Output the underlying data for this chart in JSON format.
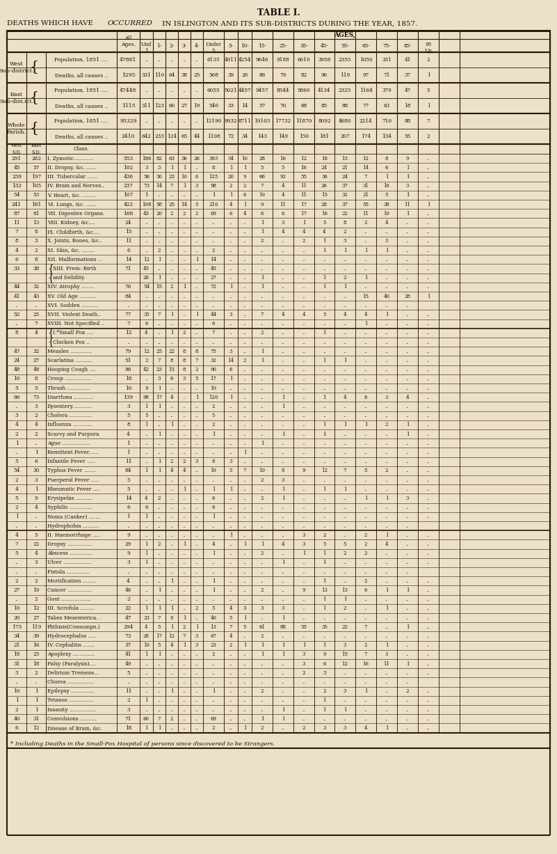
{
  "title1": "TABLE I.",
  "title2_normal": "DEATHS WHICH HAVE ",
  "title2_italic": "OCCURRED",
  "title2_rest": " IN ISLINGTON AND ITS SUB-DISTRICTS DURING THE YEAR, 1857.",
  "bg_color": "#ede0c8",
  "age_headers": [
    "All\nAges.",
    "Und\n1",
    "1-",
    "2-",
    "3-",
    "4-",
    "Under\n5",
    "5-",
    "10-",
    "15-",
    "25-",
    "35-",
    "45-",
    "55-",
    "65-",
    "75-",
    "85-",
    "95\nUp"
  ],
  "sect1": [
    [
      "West\nSub-district.",
      "Population, 1851 ....",
      "47881",
      "..",
      "..",
      "..",
      "..",
      "..",
      "6135",
      "4911",
      "4254",
      "9646",
      "9188",
      "6010",
      "3958",
      "2355",
      "1050",
      "331",
      "41",
      "2"
    ],
    [
      "",
      "Deaths, all causes ..",
      "1295",
      "331",
      "110",
      "64",
      "38",
      "25",
      "568",
      "39",
      "20",
      "86",
      "79",
      "82",
      "96",
      "119",
      "97",
      "71",
      "37",
      "1"
    ],
    [
      "East\nSub-dist.ict.",
      "Population, 1851 ....",
      "47448",
      "..",
      "..",
      "..",
      "..",
      "..",
      "6055",
      "5021",
      "4457",
      "9457",
      "8544",
      "5860",
      "4134",
      "2325",
      "1164",
      "379",
      "47",
      "5"
    ],
    [
      "",
      "Deaths, all causes ..",
      "1115",
      "311",
      "123",
      "60",
      "27",
      "19",
      "540",
      "33",
      "14",
      "57",
      "70",
      "68",
      "85",
      "88",
      "77",
      "63",
      "18",
      "1"
    ],
    [
      "Whole\nParish.",
      "Population, 1851 ....",
      "95329",
      "..",
      "..",
      "..",
      "..",
      "..",
      "12190",
      "9932",
      "8711",
      "19103",
      "17732",
      "11870",
      "8092",
      "4680",
      "2214",
      "710",
      "88",
      "7"
    ],
    [
      "",
      "Deaths, all causes ..",
      "2410",
      "642",
      "233",
      "124",
      "65",
      "44",
      "1108",
      "72",
      "34",
      "143",
      "149",
      "150",
      "181",
      "207",
      "174",
      "134",
      "55",
      "2"
    ]
  ],
  "data_rows": [
    [
      "291",
      "262",
      "I. Zymotic............",
      "553",
      "186",
      "82",
      "63",
      "36",
      "26",
      "393",
      "34",
      "10",
      "28",
      "16",
      "12",
      "18",
      "13",
      "12",
      "8",
      "9",
      ".."
    ],
    [
      "45",
      "57",
      "II. Dropsy, &c. ......",
      "102",
      "3",
      "3",
      "1",
      "1",
      "..",
      "8",
      "1",
      "1",
      "5",
      "5",
      "16",
      "24",
      "21",
      "14",
      "6",
      "1",
      ".."
    ],
    [
      "239",
      "197",
      "III. Tubercular ......",
      "436",
      "56",
      "30",
      "23",
      "10",
      "6",
      "125",
      "20",
      "9",
      "66",
      "92",
      "55",
      "36",
      "24",
      "7",
      "1",
      "1",
      ".."
    ],
    [
      "132",
      "105",
      "IV. Brain and Nerves..",
      "237",
      "73",
      "14",
      "7",
      "1",
      "3",
      "98",
      "2",
      "2",
      "7",
      "4",
      "11",
      "26",
      "37",
      "31",
      "16",
      "3",
      ".."
    ],
    [
      "54",
      "53",
      "V. Heart, &c. ........",
      "107",
      "1",
      "..",
      "..",
      "..",
      "..",
      "1",
      "1",
      "6",
      "10",
      "4",
      "11",
      "15",
      "32",
      "21",
      "5",
      "1",
      ".."
    ],
    [
      "241",
      "181",
      "VI. Lungs, &c. ......",
      "422",
      "108",
      "58",
      "25",
      "14",
      "5",
      "210",
      "4",
      "1",
      "9",
      "11",
      "17",
      "28",
      "37",
      "55",
      "38",
      "11",
      "1"
    ],
    [
      "87",
      "81",
      "VII. Digestive Organs.",
      "168",
      "43",
      "20",
      "2",
      "2",
      "2",
      "69",
      "6",
      "4",
      "6",
      "6",
      "17",
      "16",
      "22",
      "11",
      "10",
      "1",
      ".."
    ],
    [
      "11",
      "13",
      "VIII. Kidney, &c....",
      "24",
      "..",
      "..",
      "..",
      "..",
      "..",
      "..",
      "..",
      "..",
      "1",
      "3",
      "1",
      "5",
      "8",
      "2",
      "4",
      "..",
      ".."
    ],
    [
      "7",
      "8",
      "IX. Childbirth, &c....",
      "15",
      "..",
      "..",
      "..",
      "..",
      "..",
      "..",
      "..",
      "..",
      "1",
      "4",
      "4",
      "4",
      "2",
      "..",
      "..",
      "..",
      ".."
    ],
    [
      "8",
      "3",
      "X. Joints, Bones, &c..",
      "11",
      "..",
      "..",
      "..",
      "..",
      "..",
      "..",
      "..",
      "..",
      "2",
      "..",
      "2",
      "1",
      "3",
      "..",
      "3",
      "..",
      ".."
    ],
    [
      "4",
      "2",
      "XI. Skin, &c. ........",
      "6",
      "..",
      "2",
      "..",
      "..",
      "..",
      "2",
      "..",
      "..",
      "..",
      "..",
      "..",
      "1",
      "1",
      "1",
      "1",
      "..",
      ".."
    ],
    [
      "6",
      "8",
      "XII. Malformations ..",
      "14",
      "12",
      "1",
      "..",
      "..",
      "1",
      "14",
      "..",
      "..",
      "..",
      "..",
      "..",
      "..",
      "..",
      "..",
      "..",
      "..",
      ".."
    ],
    [
      "33",
      "38",
      "  XIII. Prem: Birth  ",
      "71",
      "45",
      "..",
      "..",
      "..",
      "..",
      "45",
      "..",
      "..",
      "..",
      "..",
      "..",
      "..",
      "..",
      "..",
      "..",
      "..",
      ".."
    ],
    [
      "",
      "",
      "      and Debility.  ",
      "",
      "26",
      "1",
      "..",
      "..",
      "..",
      "27",
      "..",
      "..",
      "1",
      "..",
      "..",
      "1",
      "2",
      "1",
      "..",
      "..",
      ".."
    ],
    [
      "44",
      "32",
      "XIV. Atrophy ........",
      "76",
      "54",
      "15",
      "2",
      "1",
      "..",
      "72",
      "1",
      "..",
      "1",
      "..",
      "..",
      "1",
      "1",
      "..",
      "..",
      "..",
      ".."
    ],
    [
      "41",
      "43",
      "XV. Old Age ..........",
      "84",
      "..",
      "..",
      "..",
      "..",
      "..",
      "..",
      "..",
      "..",
      "..",
      "..",
      "..",
      "..",
      "..",
      "15",
      "40",
      "28",
      "1"
    ],
    [
      "..",
      "..",
      "XVI. Sudden ..........",
      "..",
      "..",
      "..",
      "..",
      "..",
      "..",
      "..",
      "..",
      "..",
      "..",
      "..",
      "..",
      "..",
      "..",
      "..",
      "..",
      ".."
    ],
    [
      "52",
      "25",
      "XVII. Violent Death..",
      "77",
      "35",
      "7",
      "1",
      "..",
      "1",
      "44",
      "3",
      "..",
      "7",
      "4",
      "4",
      "5",
      "4",
      "4",
      "1",
      "..",
      ".."
    ],
    [
      "..",
      "7",
      "XVIII. Not Specified ..",
      "7",
      "6",
      "..",
      "..",
      "..",
      "..",
      "6",
      "..",
      "..",
      "..",
      "..",
      "..",
      "..",
      "..",
      "1",
      "..",
      "..",
      ".."
    ],
    [
      "8",
      "4",
      "  I.*Small Pox .... ",
      "12",
      "4",
      "..",
      "1",
      "2",
      "..",
      "7",
      "..",
      "..",
      "2",
      "..",
      "..",
      "1",
      "..",
      "..",
      "..",
      "..",
      ".."
    ],
    [
      "",
      "",
      "  Chicken Pox ..   ",
      "..",
      "..",
      "..",
      "..",
      "..",
      "..",
      "..",
      "..",
      "..",
      "..",
      "..",
      "..",
      "..",
      "..",
      "..",
      "..",
      "..",
      ".."
    ],
    [
      "47",
      "32",
      "Measles .............",
      "79",
      "12",
      "25",
      "22",
      "8",
      "8",
      "75",
      "3",
      "..",
      "1",
      "..",
      "..",
      "..",
      "..",
      "..",
      "..",
      "..",
      ".."
    ],
    [
      "24",
      "27",
      "Scarlatina ..........",
      "51",
      "2",
      "7",
      "8",
      "8",
      "7",
      "32",
      "14",
      "2",
      "1",
      "..",
      "..",
      "1",
      "1",
      "..",
      "..",
      "..",
      ".."
    ],
    [
      "48",
      "48",
      "Hooping Cough ....",
      "96",
      "42",
      "23",
      "15",
      "8",
      "2",
      "90",
      "6",
      "..",
      "..",
      "..",
      "..",
      "..",
      "..",
      "..",
      "..",
      "..",
      ".."
    ],
    [
      "10",
      "8",
      "Croup ................",
      "18",
      "..",
      "3",
      "6",
      "3",
      "5",
      "17",
      "1",
      "..",
      "..",
      "..",
      "..",
      "..",
      "..",
      "..",
      "..",
      "..",
      ".."
    ],
    [
      "5",
      "5",
      "Thrush ..............",
      "10",
      "9",
      "1",
      "..",
      "..",
      "..",
      "10",
      "..",
      "..",
      "..",
      "..",
      "..",
      "..",
      "..",
      "..",
      "..",
      "..",
      ".."
    ],
    [
      "66",
      "73",
      "Diarrhœa ............",
      "139",
      "98",
      "17",
      "4",
      "..",
      "1",
      "120",
      "1",
      "..",
      "..",
      "1",
      "..",
      "1",
      "4",
      "6",
      "3",
      "4",
      ".."
    ],
    [
      "..",
      "3",
      "Dysentery............",
      "3",
      "1",
      "1",
      "..",
      "..",
      "..",
      "2",
      "..",
      "..",
      "..",
      "1",
      "..",
      "..",
      "..",
      "..",
      "..",
      "..",
      ".."
    ],
    [
      "3",
      "2",
      "Cholera ..............",
      "5",
      "5",
      "..",
      "..",
      "..",
      "..",
      "5",
      "..",
      "..",
      "..",
      "..",
      "..",
      "..",
      "..",
      "..",
      "..",
      "..",
      ".."
    ],
    [
      "4",
      "4",
      "Influenza ............",
      "8",
      "1",
      "..",
      "1",
      "..",
      "..",
      "2",
      "..",
      "..",
      "..",
      "..",
      "..",
      "1",
      "1",
      "1",
      "2",
      "1",
      ".."
    ],
    [
      "2",
      "2",
      "Scurvy and Purpura",
      "4",
      "..",
      "1",
      "..",
      "..",
      "..",
      "1",
      "..",
      "..",
      "..",
      "1",
      "..",
      "1",
      "..",
      "..",
      "..",
      "1",
      ".."
    ],
    [
      "1",
      "..",
      "Ague .................",
      "1",
      "..",
      "..",
      "..",
      "..",
      "..",
      "..",
      "..",
      "..",
      "1",
      "..",
      "..",
      "..",
      "..",
      "..",
      "..",
      "..",
      ".."
    ],
    [
      "..",
      "1",
      "Remittent Fever......",
      "1",
      "..",
      "..",
      "..",
      "..",
      "..",
      "..",
      "..",
      "1",
      "..",
      "..",
      "..",
      "..",
      "..",
      "..",
      "..",
      "..",
      ".."
    ],
    [
      "5",
      "6",
      "Infantile Fever .....",
      "11",
      "..",
      "1",
      "2",
      "2",
      "3",
      "8",
      "3",
      "..",
      "..",
      "..",
      "..",
      "..",
      "..",
      "..",
      "..",
      "..",
      ".."
    ],
    [
      "54",
      "30",
      "Typhus Fever .......",
      "84",
      "1",
      "1",
      "4",
      "4",
      "..",
      "10",
      "5",
      "7",
      "10",
      "8",
      "9",
      "12",
      "7",
      "5",
      "2",
      "..",
      ".."
    ],
    [
      "2",
      "3",
      "Puerperal Fever .....",
      "5",
      "..",
      "..",
      "..",
      "..",
      "..",
      "..",
      "..",
      "..",
      "2",
      "3",
      "..",
      "..",
      "..",
      "..",
      "..",
      "..",
      ".."
    ],
    [
      "4",
      "1",
      "Rheumatic Fever ....",
      "5",
      "..",
      "..",
      "..",
      "1",
      "..",
      "1",
      "1",
      "..",
      "..",
      "1",
      "..",
      "1",
      "1",
      "..",
      "..",
      "..",
      ".."
    ],
    [
      "5",
      "9",
      "Erysipelas ..........",
      "14",
      "4",
      "2",
      "..",
      "..",
      "..",
      "6",
      "..",
      "..",
      "2",
      "1",
      "..",
      "..",
      "..",
      "1",
      "1",
      "3",
      ".."
    ],
    [
      "2",
      "4",
      "Syphilis ..............",
      "6",
      "6",
      "..",
      "..",
      "..",
      "..",
      "6",
      "..",
      "..",
      "..",
      "..",
      "..",
      "..",
      "..",
      "..",
      "..",
      "..",
      ".."
    ],
    [
      "1",
      "..",
      "Noma (Canker) .......",
      "1",
      "1",
      "..",
      "..",
      "..",
      "..",
      "1",
      "..",
      "..",
      "..",
      "..",
      "..",
      "..",
      "..",
      "..",
      "..",
      "..",
      ".."
    ],
    [
      "..",
      "..",
      "Hydrophobia ..........",
      "..",
      "..",
      "..",
      "..",
      "..",
      "..",
      "..",
      "..",
      "..",
      "..",
      "..",
      "..",
      "..",
      "..",
      "..",
      "..",
      ".."
    ],
    [
      "4",
      "5",
      "II. Haemorrhage .....",
      "9",
      "..",
      "..",
      "..",
      "..",
      "..",
      "..",
      "1",
      "..",
      "..",
      "..",
      "3",
      "2",
      "..",
      "2",
      "1",
      "..",
      ".."
    ],
    [
      "7",
      "22",
      "Dropsy ...............",
      "29",
      "1",
      "2",
      "..",
      "1",
      "..",
      "4",
      "..",
      "1",
      "1",
      "4",
      "3",
      "5",
      "5",
      "2",
      "4",
      "..",
      ".."
    ],
    [
      "5",
      "4",
      "Abscess ..............",
      "9",
      "1",
      "..",
      "..",
      "..",
      "..",
      "1",
      "..",
      "..",
      "2",
      "..",
      "1",
      "1",
      "2",
      "2",
      "..",
      "..",
      ".."
    ],
    [
      "..",
      "3",
      "Ulcer .................",
      "3",
      "1",
      "..",
      "..",
      "..",
      "..",
      "..",
      "..",
      "..",
      "..",
      "1",
      "..",
      "1",
      "..",
      "..",
      "..",
      "..",
      ".."
    ],
    [
      "..",
      "..",
      "Fistula ..............",
      "..",
      "..",
      "..",
      "..",
      "..",
      "..",
      "..",
      "..",
      "..",
      "..",
      "..",
      "..",
      "..",
      "..",
      "..",
      "..",
      ".."
    ],
    [
      "2",
      "2",
      "Mortification ........",
      "4",
      "..",
      "..",
      "1",
      "..",
      "..",
      "1",
      "..",
      "..",
      "..",
      "..",
      "..",
      "1",
      "..",
      "2",
      "..",
      "..",
      ".."
    ],
    [
      "27",
      "19",
      "Cancer ...............",
      "46",
      "..",
      "1",
      "..",
      "..",
      "..",
      "1",
      "..",
      "..",
      "2",
      "..",
      "9",
      "13",
      "13",
      "6",
      "1",
      "1",
      ".."
    ],
    [
      "..",
      "2",
      "Gout ..................",
      "2",
      "..",
      "..",
      "..",
      "..",
      "..",
      "..",
      "..",
      "..",
      "..",
      "..",
      "..",
      "1",
      "1",
      "..",
      "..",
      "..",
      ".."
    ],
    [
      "10",
      "12",
      "III. Scrofula .........",
      "22",
      "1",
      "1",
      "1",
      "..",
      "2",
      "5",
      "4",
      "3",
      "3",
      "3",
      "..",
      "1",
      "2",
      "..",
      "1",
      "..",
      ".."
    ],
    [
      "20",
      "27",
      "Tabes Mesenterica. .",
      "47",
      "23",
      "7",
      "9",
      "1",
      "..",
      "40",
      "5",
      "1",
      "..",
      "1",
      "..",
      "..",
      "..",
      "..",
      "..",
      "..",
      ".."
    ],
    [
      "175",
      "119",
      "Phthisis(Consumpn.)",
      "294",
      "4",
      "5",
      "1",
      "2",
      "1",
      "13",
      "7",
      "5",
      "61",
      "88",
      "55",
      "35",
      "22",
      "7",
      "..",
      "1",
      ".."
    ],
    [
      "34",
      "39",
      "Hydrocephalus .....",
      "73",
      "28",
      "17",
      "12",
      "7",
      "3",
      "67",
      "4",
      "..",
      "2",
      "..",
      "..",
      "..",
      "..",
      "..",
      "..",
      "..",
      ".."
    ],
    [
      "21",
      "16",
      "IV. Cephalitis .......",
      "37",
      "10",
      "5",
      "4",
      "1",
      "3",
      "23",
      "2",
      "1",
      "1",
      "1",
      "1",
      "1",
      "3",
      "2",
      "1",
      "..",
      ".."
    ],
    [
      "18",
      "23",
      "Apoplexy .............",
      "41",
      "1",
      "1",
      "..",
      "..",
      "..",
      "2",
      "..",
      "..",
      "1",
      "1",
      "3",
      "9",
      "15",
      "7",
      "3",
      "..",
      ".."
    ],
    [
      "31",
      "18",
      "Palsy (Paralysis)....",
      "49",
      "..",
      "..",
      "..",
      "..",
      "..",
      "..",
      "..",
      "..",
      "..",
      "..",
      "3",
      "6",
      "12",
      "16",
      "11",
      "1",
      ".."
    ],
    [
      "3",
      "2",
      "Delirium Tremens...",
      "5",
      "..",
      "..",
      "..",
      "..",
      "..",
      "..",
      "..",
      "..",
      "..",
      "..",
      "2",
      "3",
      "..",
      "..",
      "..",
      "..",
      ".."
    ],
    [
      "..",
      "..",
      "Chorea ................",
      "..",
      "..",
      "..",
      "..",
      "..",
      "..",
      "..",
      "..",
      "..",
      "..",
      "..",
      "..",
      "..",
      "..",
      "..",
      "..",
      ".."
    ],
    [
      "10",
      "1",
      "Epilepsy ..............",
      "11",
      "..",
      "..",
      "1",
      "..",
      "..",
      "1",
      "..",
      "..",
      "2",
      "..",
      "..",
      "2",
      "3",
      "1",
      "..",
      "2",
      ".."
    ],
    [
      "1",
      "1",
      "Tetanus ...............",
      "2",
      "1",
      "..",
      "..",
      "..",
      "..",
      "..",
      "..",
      "..",
      "..",
      "..",
      "..",
      "1",
      "..",
      "..",
      "..",
      "..",
      ".."
    ],
    [
      "2",
      "1",
      "Insanity ................",
      "3",
      "..",
      "..",
      "..",
      "..",
      "..",
      "..",
      "..",
      "..",
      "..",
      "1",
      "..",
      "1",
      "1",
      "..",
      "..",
      "..",
      ".."
    ],
    [
      "40",
      "31",
      "Convulsions ..........",
      "71",
      "60",
      "7",
      "2",
      "..",
      "..",
      "69",
      "..",
      "..",
      "1",
      "1",
      "..",
      "..",
      "..",
      "..",
      "..",
      "..",
      ".."
    ],
    [
      "6",
      "12",
      "Disease of Brain, &c.",
      "18",
      "1",
      "1",
      "..",
      "..",
      "..",
      "2",
      "..",
      "1",
      "2",
      "..",
      "2",
      "3",
      "3",
      "4",
      "1",
      "..",
      ".."
    ]
  ],
  "sect_breaks": [
    18,
    40
  ],
  "footnote": "* Including Deaths in the Small-Pox Hospital of persons since discovered to be Strangers.",
  "group_separator_rows": [
    18,
    40
  ]
}
